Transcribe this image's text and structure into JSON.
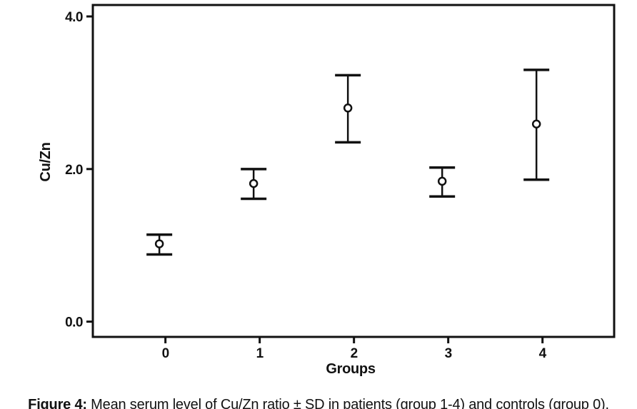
{
  "figure": {
    "caption_label": "Figure 4:",
    "caption_text": " Mean serum level of Cu/Zn ratio ± SD in patients (group 1-4) and controls (group 0)."
  },
  "chart_data": {
    "type": "scatter",
    "subtype": "mean-sd-errorbar",
    "title": "",
    "xlabel": "Groups",
    "ylabel": "Cu/Zn",
    "categories": [
      "0",
      "1",
      "2",
      "3",
      "4"
    ],
    "y_ticks": [
      {
        "value": 0.0,
        "label": "0.0"
      },
      {
        "value": 2.0,
        "label": "2.0"
      },
      {
        "value": 4.0,
        "label": "4.0"
      }
    ],
    "ylim": [
      -0.2,
      4.15
    ],
    "xlim": [
      -0.77,
      4.76
    ],
    "grid": false,
    "legend": "none",
    "marker": "open-circle",
    "colors": {
      "foreground": "#111111",
      "background": "#ffffff"
    },
    "series": [
      {
        "name": "Mean Cu/Zn ratio ± SD",
        "points": [
          {
            "group": "0",
            "mean": 1.02,
            "upper": 1.14,
            "lower": 0.88
          },
          {
            "group": "1",
            "mean": 1.81,
            "upper": 2.0,
            "lower": 1.61
          },
          {
            "group": "2",
            "mean": 2.8,
            "upper": 3.23,
            "lower": 2.35
          },
          {
            "group": "3",
            "mean": 1.84,
            "upper": 2.02,
            "lower": 1.64
          },
          {
            "group": "4",
            "mean": 2.59,
            "upper": 3.3,
            "lower": 1.86
          }
        ]
      }
    ]
  }
}
